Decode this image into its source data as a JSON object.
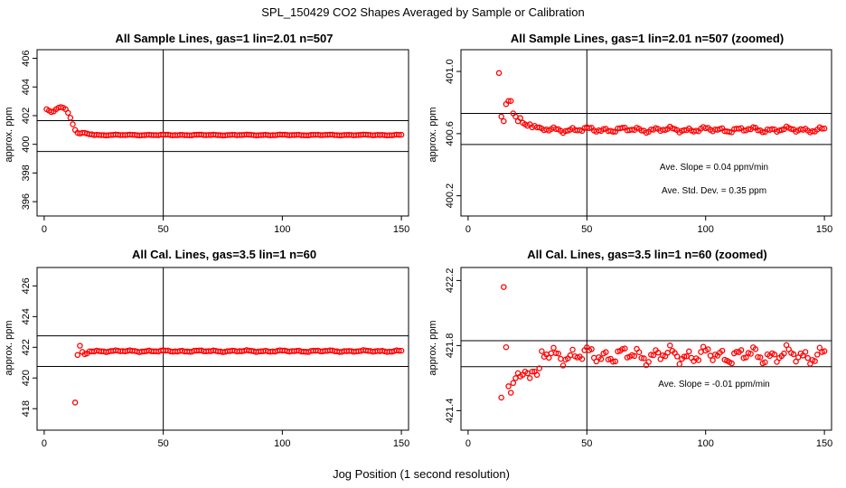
{
  "figure": {
    "main_title": "SPL_150429  CO2 Shapes Averaged by Sample or Calibration",
    "xlabel": "Jog Position (1 second resolution)"
  },
  "colors": {
    "points": "#ff0000",
    "lines": "#000000",
    "background": "#ffffff"
  },
  "chart_data": [
    {
      "type": "scatter",
      "title": "All Sample Lines, gas=1 lin=2.01 n=507",
      "ylabel": "approx. ppm",
      "xlim": [
        -3,
        153
      ],
      "ylim": [
        395,
        406.6
      ],
      "xticks": [
        0,
        50,
        100,
        150
      ],
      "yticks": [
        396,
        398,
        400,
        402,
        404,
        406
      ],
      "ytick_labels": [
        "396",
        "398",
        "400",
        "402",
        "404",
        "406"
      ],
      "vline": 50,
      "hlines": [
        401.65,
        399.5
      ],
      "annotations": [],
      "segments": [
        {
          "x": [
            1,
            2,
            3,
            4,
            5,
            6,
            7,
            8,
            9,
            10,
            11,
            12,
            13,
            14,
            15,
            16,
            17,
            18,
            19,
            20
          ],
          "y": [
            402.45,
            402.35,
            402.25,
            402.3,
            402.45,
            402.55,
            402.6,
            402.55,
            402.45,
            402.2,
            401.85,
            401.4,
            401.0,
            400.8,
            400.75,
            400.8,
            400.8,
            400.75,
            400.7,
            400.7
          ]
        },
        {
          "x_start": 21,
          "x_end": 150,
          "base": 400.65,
          "amplitude": 0.03
        }
      ]
    },
    {
      "type": "scatter",
      "title": "All Sample Lines, gas=1 lin=2.01 n=507 (zoomed)",
      "ylabel": "approx. ppm",
      "xlim": [
        -3,
        153
      ],
      "ylim": [
        400.07,
        401.14
      ],
      "xticks": [
        0,
        50,
        100,
        150
      ],
      "yticks": [
        400.2,
        400.6,
        401.0
      ],
      "ytick_labels": [
        "400.2",
        "400.6",
        "401.0"
      ],
      "vline": 50,
      "hlines": [
        400.73,
        400.53
      ],
      "annotations": [
        "Ave. Slope =  0.04  ppm/min",
        "Ave. Std. Dev. =  0.35  ppm"
      ],
      "segments": [
        {
          "x": [
            13,
            14,
            15,
            16,
            17,
            18,
            19,
            20,
            21,
            22,
            23,
            24,
            25,
            26,
            27,
            28,
            29,
            30
          ],
          "y": [
            400.99,
            400.71,
            400.68,
            400.79,
            400.81,
            400.81,
            400.73,
            400.71,
            400.68,
            400.7,
            400.67,
            400.66,
            400.65,
            400.66,
            400.64,
            400.65,
            400.64,
            400.64
          ]
        },
        {
          "x_start": 31,
          "x_end": 150,
          "base": 400.625,
          "amplitude": 0.018
        }
      ]
    },
    {
      "type": "scatter",
      "title": "All Cal. Lines, gas=3.5 lin=1 n=60",
      "ylabel": "approx. ppm",
      "xlim": [
        -3,
        153
      ],
      "ylim": [
        416.6,
        427.2
      ],
      "xticks": [
        0,
        50,
        100,
        150
      ],
      "yticks": [
        418,
        420,
        422,
        424,
        426
      ],
      "ytick_labels": [
        "418",
        "420",
        "422",
        "424",
        "426"
      ],
      "vline": 50,
      "hlines": [
        422.75,
        420.75
      ],
      "annotations": [],
      "segments": [
        {
          "x": [
            13,
            14,
            15,
            16,
            17,
            18
          ],
          "y": [
            418.4,
            421.5,
            422.1,
            421.7,
            421.55,
            421.6
          ]
        },
        {
          "x_start": 19,
          "x_end": 150,
          "base": 421.75,
          "amplitude": 0.06
        }
      ]
    },
    {
      "type": "scatter",
      "title": "All Cal. Lines, gas=3.5 lin=1 n=60 (zoomed)",
      "ylabel": "approx. ppm",
      "xlim": [
        -3,
        153
      ],
      "ylim": [
        421.28,
        422.28
      ],
      "xticks": [
        0,
        50,
        100,
        150
      ],
      "yticks": [
        421.4,
        421.8,
        422.2
      ],
      "ytick_labels": [
        "421.4",
        "421.8",
        "422.2"
      ],
      "vline": 50,
      "hlines": [
        421.83,
        421.67
      ],
      "annotations": [
        "Ave. Slope =  -0.01  ppm/min"
      ],
      "segments": [
        {
          "x": [
            14,
            15,
            16,
            17,
            18,
            19,
            20,
            21,
            22,
            23,
            24,
            25,
            26,
            27,
            28,
            29,
            30
          ],
          "y": [
            421.48,
            422.16,
            421.79,
            421.55,
            421.51,
            421.57,
            421.6,
            421.63,
            421.61,
            421.62,
            421.64,
            421.63,
            421.6,
            421.64,
            421.64,
            421.62,
            421.66
          ]
        },
        {
          "x_start": 31,
          "x_end": 150,
          "base": 421.74,
          "amplitude": 0.055
        }
      ]
    }
  ]
}
